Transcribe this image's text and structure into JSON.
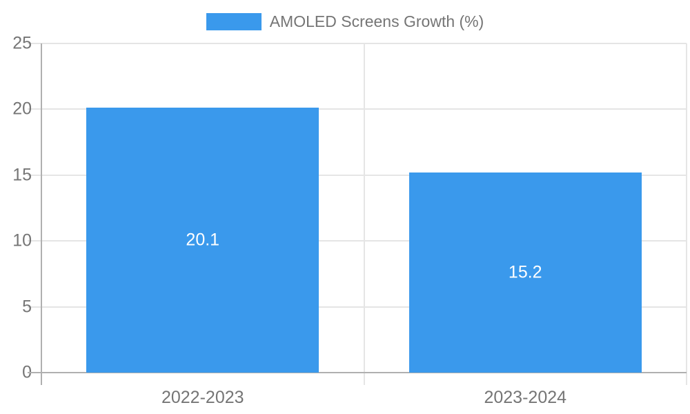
{
  "chart_data": {
    "type": "bar",
    "title": "",
    "legend": "AMOLED Screens Growth (%)",
    "legend_position": "top",
    "categories": [
      "2022-2023",
      "2023-2024"
    ],
    "values": [
      20.1,
      15.2
    ],
    "value_labels": [
      "20.1",
      "15.2"
    ],
    "ylim": [
      0,
      25
    ],
    "yticks": [
      0,
      5,
      10,
      15,
      20,
      25
    ],
    "ytick_labels": [
      "0",
      "5",
      "10",
      "15",
      "20",
      "25"
    ],
    "grid": true,
    "colors": {
      "bar": "#3a99ec",
      "value_label": "#ffffff",
      "axis_text": "#757575",
      "gridline": "#e5e5e5",
      "axis_line": "#b0b0b0"
    }
  }
}
